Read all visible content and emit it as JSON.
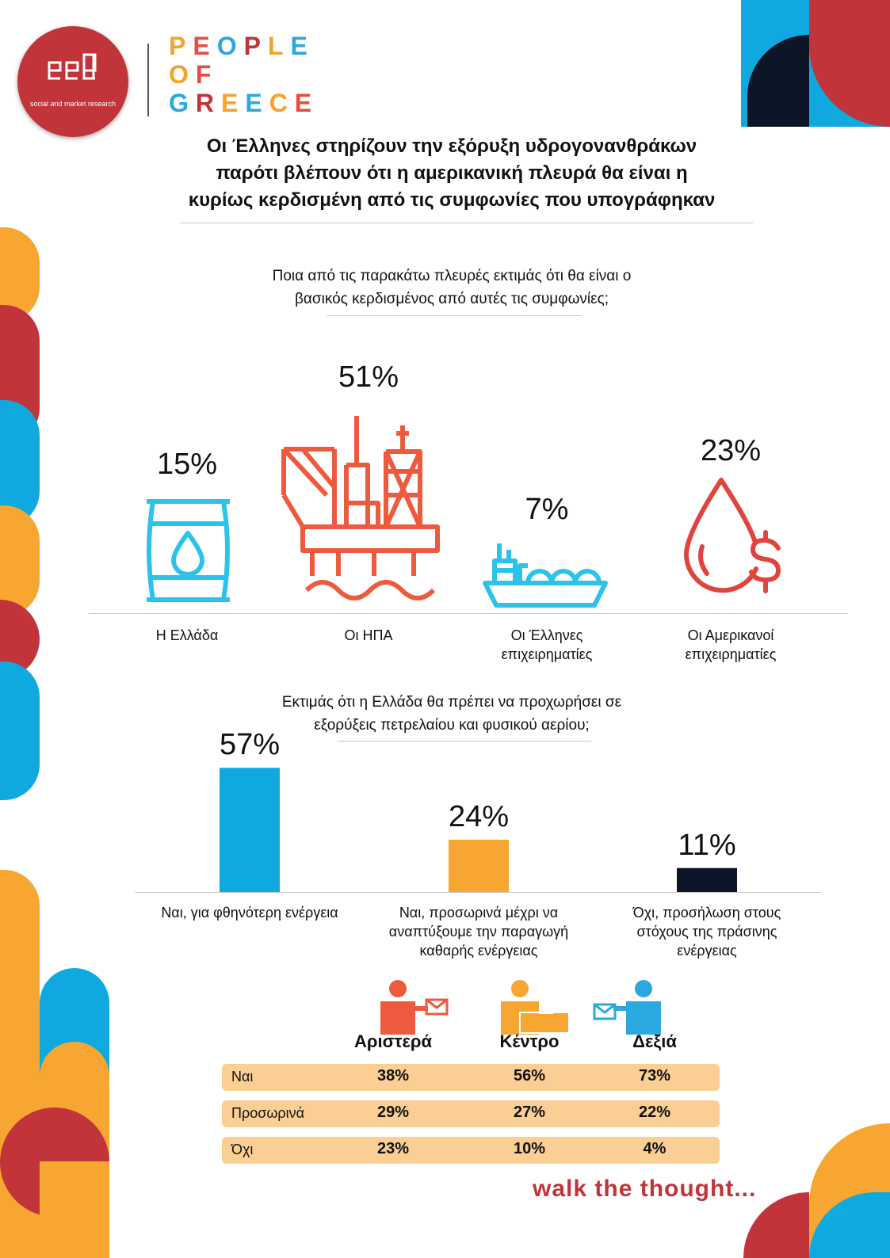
{
  "header": {
    "logo_tagline": "social and market research",
    "brand_lines": [
      "PEOPLE",
      "OF",
      "GREECE"
    ],
    "brand_colors": [
      "#f6a22b",
      "#e84c3d",
      "#2ca8e0",
      "#c1343a",
      "#f6a22b",
      "#2ca8e0"
    ]
  },
  "title_lines": [
    "Οι Έλληνες στηρίζουν την εξόρυξη υδρογονανθράκων",
    "παρότι βλέπουν ότι η αμερικανική πλευρά θα είναι η",
    "κυρίως κερδισμένη από τις συμφωνίες που υπογράφηκαν"
  ],
  "q1": {
    "lines": [
      "Ποια από τις παρακάτω πλευρές εκτιμάς ότι θα είναι ο",
      "βασικός κερδισμένος από αυτές τις συμφωνίες;"
    ]
  },
  "q2": {
    "lines": [
      "Εκτιμάς ότι η Ελλάδα θα πρέπει να προχωρήσει σε",
      "εξορύξεις πετρελαίου και φυσικού αερίου;"
    ]
  },
  "chart_data": [
    {
      "type": "bar",
      "title": "Ποια από τις παρακάτω πλευρές εκτιμάς ότι θα είναι ο βασικός κερδισμένος από αυτές τις συμφωνίες;",
      "categories": [
        "Η Ελλάδα",
        "Οι ΗΠΑ",
        "Οι Έλληνες επιχειρηματίες",
        "Οι Αμερικανοί επιχειρηματίες"
      ],
      "category_lines": [
        [
          "Η Ελλάδα"
        ],
        [
          "Οι ΗΠΑ"
        ],
        [
          "Οι Έλληνες",
          "επιχειρηματίες"
        ],
        [
          "Οι Αμερικανοί",
          "επιχειρηματίες"
        ]
      ],
      "values": [
        15,
        51,
        7,
        23
      ],
      "labels": [
        "15%",
        "51%",
        "7%",
        "23%"
      ],
      "icons": [
        "oil-barrel-icon",
        "oil-rig-icon",
        "lng-ship-icon",
        "money-drop-icon"
      ],
      "icon_colors": [
        "#2bc4e8",
        "#ee5a3d",
        "#2bc4e8",
        "#e0443e"
      ],
      "ylim": [
        0,
        60
      ]
    },
    {
      "type": "bar",
      "title": "Εκτιμάς ότι η Ελλάδα θα πρέπει να προχωρήσει σε εξορύξεις πετρελαίου και φυσικού αερίου;",
      "categories": [
        "Ναι, για φθηνότερη ενέργεια",
        "Ναι, προσωρινά μέχρι να αναπτύξουμε την παραγωγή καθαρής ενέργειας",
        "Όχι, προσήλωση στους στόχους της πράσινης ενέργειας"
      ],
      "category_lines": [
        [
          "Ναι, για φθηνότερη ενέργεια"
        ],
        [
          "Ναι, προσωρινά μέχρι να",
          "αναπτύξουμε την παραγωγή",
          "καθαρής ενέργειας"
        ],
        [
          "Όχι, προσήλωση στους",
          "στόχους της πράσινης",
          "ενέργειας"
        ]
      ],
      "values": [
        57,
        24,
        11
      ],
      "labels": [
        "57%",
        "24%",
        "11%"
      ],
      "colors": [
        "#0fa9e0",
        "#f6a631",
        "#0d1528"
      ],
      "ylim": [
        0,
        60
      ]
    },
    {
      "type": "table",
      "columns": [
        "Αριστερά",
        "Κέντρο",
        "Δεξιά"
      ],
      "column_colors": [
        "#ee5a3d",
        "#f6a631",
        "#2ca8e0"
      ],
      "rows": [
        {
          "label": "Ναι",
          "values": [
            "38%",
            "56%",
            "73%"
          ]
        },
        {
          "label": "Προσωρινά",
          "values": [
            "29%",
            "27%",
            "22%"
          ]
        },
        {
          "label": "Όχι",
          "values": [
            "23%",
            "10%",
            "4%"
          ]
        }
      ]
    }
  ],
  "footer": {
    "tagline": "walk the thought..."
  },
  "colors": {
    "red": "#c1343a",
    "orange": "#f6a631",
    "blue": "#0fa9e0",
    "navy": "#0d1528"
  }
}
